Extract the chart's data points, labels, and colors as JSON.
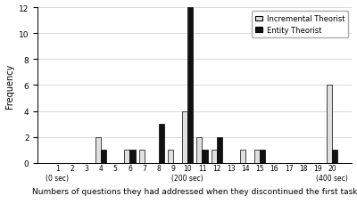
{
  "categories": [
    1,
    2,
    3,
    4,
    5,
    6,
    7,
    8,
    9,
    10,
    11,
    12,
    13,
    14,
    15,
    16,
    17,
    18,
    19,
    20
  ],
  "incremental": [
    0,
    0,
    0,
    2,
    0,
    1,
    1,
    0,
    1,
    4,
    2,
    1,
    0,
    1,
    1,
    0,
    0,
    0,
    0,
    6
  ],
  "entity": [
    0,
    0,
    0,
    1,
    0,
    1,
    0,
    3,
    0,
    12,
    1,
    2,
    0,
    0,
    1,
    0,
    0,
    0,
    0,
    1
  ],
  "incremental_color": "#e0e0e0",
  "entity_color": "#111111",
  "ylabel": "Frequency",
  "xlabel": "Numbers of questions they had addressed when they discontinued the first task",
  "ylim": [
    0,
    12
  ],
  "yticks": [
    0,
    2,
    4,
    6,
    8,
    10,
    12
  ],
  "legend_incremental": "Incremental Theorist",
  "legend_entity": "Entity Theorist",
  "bar_width": 0.38,
  "special_ticks": {
    "1": "(0 sec)",
    "10": "(200 sec)",
    "20": "(400 sec)"
  }
}
